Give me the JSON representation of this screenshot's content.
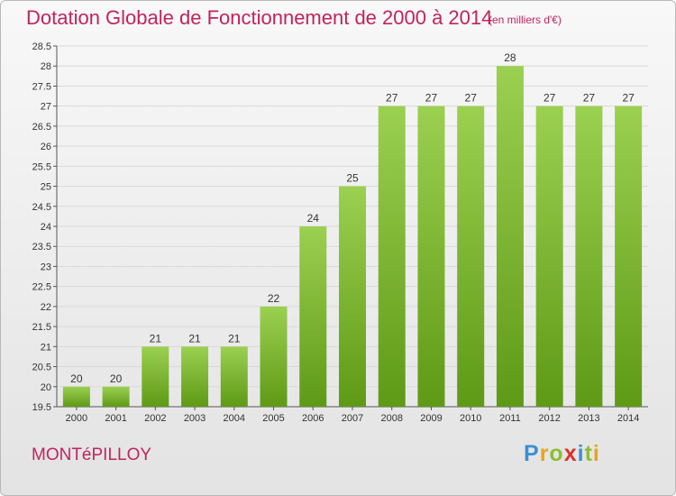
{
  "title": "Dotation Globale de Fonctionnement de 2000 à 2014",
  "unit": "(en milliers d'€)",
  "commune": "MONTéPILLOY",
  "brand": {
    "text": "Proxiti",
    "letter_colors": [
      "#3d8fcf",
      "#e8a21c",
      "#8bbf2f",
      "#d9332b",
      "#3d8fcf",
      "#8bbf2f",
      "#e8a21c"
    ]
  },
  "colors": {
    "title": "#c0245c",
    "bar_top": "#9bd050",
    "bar_bottom": "#5e9a16",
    "grid": "#d9d9d9"
  },
  "chart_data": {
    "type": "bar",
    "categories": [
      "2000",
      "2001",
      "2002",
      "2003",
      "2004",
      "2005",
      "2006",
      "2007",
      "2008",
      "2009",
      "2010",
      "2011",
      "2012",
      "2013",
      "2014"
    ],
    "values": [
      20,
      20,
      21,
      21,
      21,
      22,
      24,
      25,
      27,
      27,
      27,
      28,
      27,
      27,
      27
    ],
    "data_labels": [
      "20",
      "20",
      "21",
      "21",
      "21",
      "22",
      "24",
      "25",
      "27",
      "27",
      "27",
      "28",
      "27",
      "27",
      "27"
    ],
    "ylim": [
      19.5,
      28.5
    ],
    "yticks": [
      19.5,
      20,
      20.5,
      21,
      21.5,
      22,
      22.5,
      23,
      23.5,
      24,
      24.5,
      25,
      25.5,
      26,
      26.5,
      27,
      27.5,
      28,
      28.5
    ],
    "ytick_labels": [
      "19.5",
      "20",
      "20.5",
      "21",
      "21.5",
      "22",
      "22.5",
      "23",
      "23.5",
      "24",
      "24.5",
      "25",
      "25.5",
      "26",
      "26.5",
      "27",
      "27.5",
      "28",
      "28.5"
    ],
    "grid": true,
    "xlabel": "",
    "ylabel": ""
  }
}
